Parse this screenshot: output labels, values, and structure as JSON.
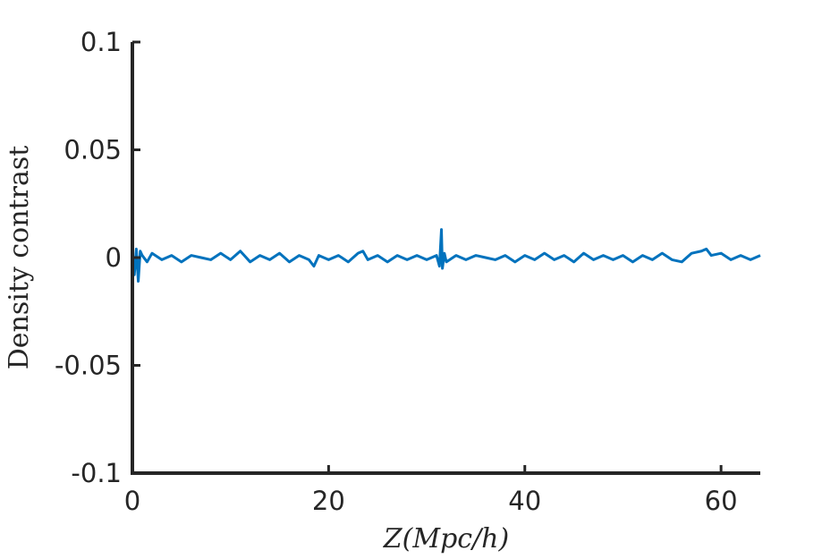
{
  "chart_data": {
    "type": "line",
    "title": "",
    "xlabel": "Z(Mpc/h)",
    "ylabel": "Density contrast",
    "xlim": [
      0,
      64
    ],
    "ylim": [
      -0.1,
      0.1
    ],
    "x_ticks": [
      0,
      20,
      40,
      60
    ],
    "x_tick_labels": [
      "0",
      "20",
      "40",
      "60"
    ],
    "y_ticks": [
      -0.1,
      -0.05,
      0,
      0.05,
      0.1
    ],
    "y_tick_labels": [
      "-0.1",
      "-0.05",
      "0",
      "0.05",
      "0.1"
    ],
    "grid": false,
    "legend": "none",
    "colors": {
      "series": "#0072BD",
      "axis": "#262626"
    },
    "series": [
      {
        "color": "#0072BD",
        "x": [
          0,
          0.2,
          0.4,
          0.6,
          0.8,
          1.0,
          1.5,
          2,
          3,
          4,
          5,
          6,
          7,
          8,
          9,
          10,
          11,
          12,
          13,
          14,
          15,
          16,
          17,
          18,
          18.5,
          19,
          20,
          21,
          22,
          23,
          23.5,
          24,
          25,
          26,
          27,
          28,
          29,
          30,
          31,
          31.3,
          31.5,
          31.6,
          31.8,
          32,
          33,
          34,
          35,
          36,
          37,
          38,
          39,
          40,
          41,
          42,
          43,
          44,
          45,
          46,
          47,
          48,
          49,
          50,
          51,
          52,
          53,
          54,
          55,
          56,
          57,
          58,
          58.5,
          59,
          60,
          61,
          62,
          63,
          64
        ],
        "y": [
          0.001,
          -0.008,
          0.004,
          -0.011,
          0.003,
          0.001,
          -0.002,
          0.002,
          -0.001,
          0.001,
          -0.002,
          0.001,
          0.0,
          -0.001,
          0.002,
          -0.001,
          0.003,
          -0.002,
          0.001,
          -0.001,
          0.002,
          -0.002,
          0.001,
          -0.001,
          -0.004,
          0.001,
          -0.001,
          0.001,
          -0.002,
          0.002,
          0.003,
          -0.001,
          0.001,
          -0.002,
          0.001,
          -0.001,
          0.001,
          -0.001,
          0.001,
          -0.004,
          0.013,
          -0.005,
          0.002,
          -0.002,
          0.001,
          -0.001,
          0.001,
          0.0,
          -0.001,
          0.001,
          -0.002,
          0.001,
          -0.001,
          0.002,
          -0.001,
          0.001,
          -0.002,
          0.002,
          -0.001,
          0.001,
          -0.001,
          0.001,
          -0.002,
          0.001,
          -0.001,
          0.002,
          -0.001,
          -0.002,
          0.002,
          0.003,
          0.004,
          0.001,
          0.002,
          -0.001,
          0.001,
          -0.001,
          0.001
        ]
      }
    ]
  }
}
